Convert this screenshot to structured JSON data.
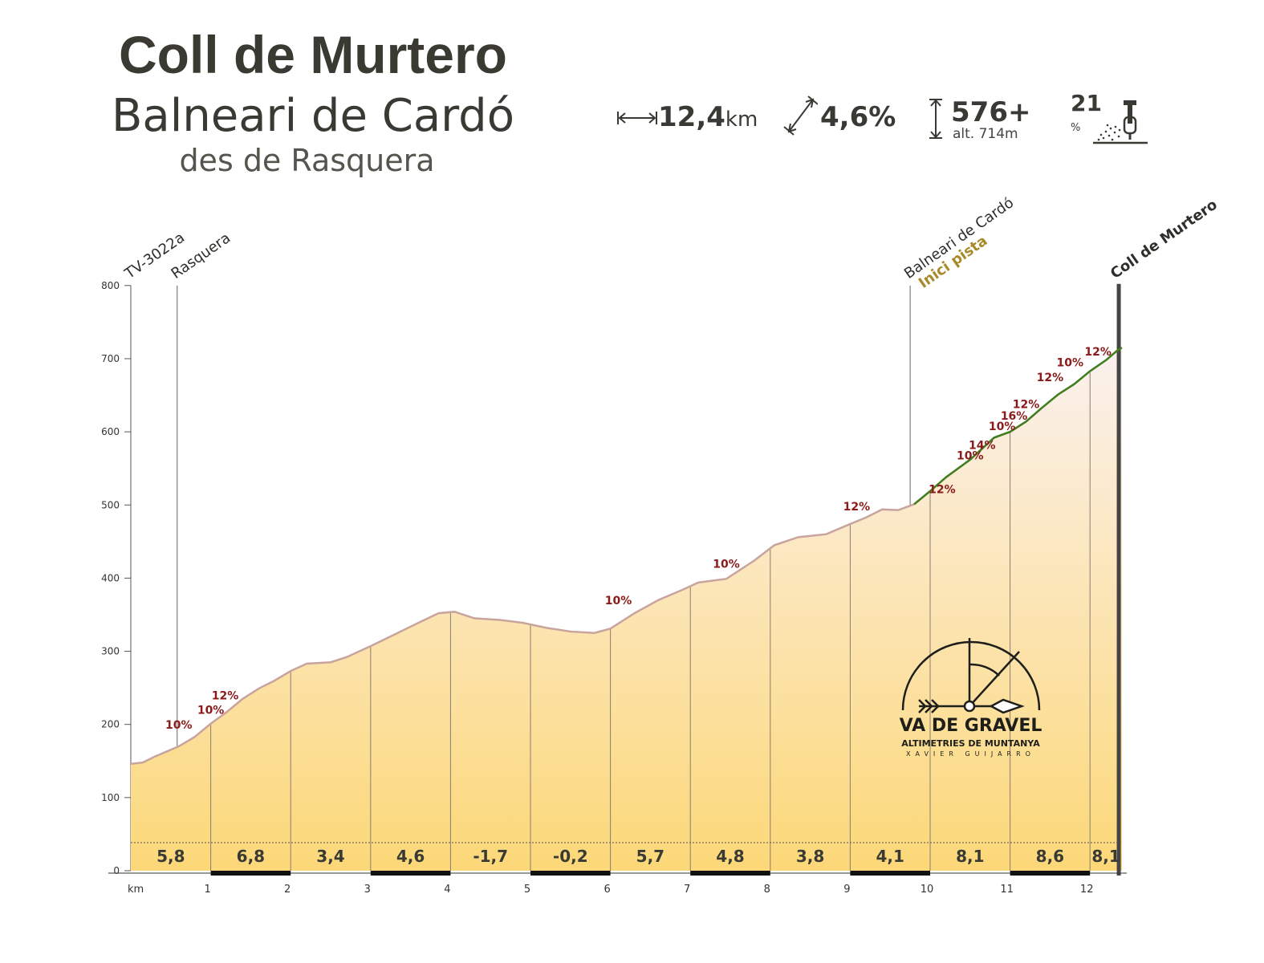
{
  "header": {
    "title": "Coll de Murtero",
    "subtitle": "Balneari de Cardó",
    "subtitle2": "des de Rasquera"
  },
  "stats": {
    "distance_value": "12,4",
    "distance_unit": "km",
    "gradient_value": "4,6%",
    "elevation_gain_value": "576+",
    "max_altitude": "alt. 714m",
    "max_gradient_value": "21",
    "max_gradient_unit": "%"
  },
  "icons": {
    "distance": "distance-arrows-icon",
    "gradient": "gradient-diagonal-icon",
    "elevation": "elevation-arrow-icon",
    "max_gradient": "steep-climb-icon"
  },
  "colors": {
    "fill_top": "#fbf1ee",
    "fill_bottom": "#fcd878",
    "profile_line": "#c8a49e",
    "gravel_line": "#3f7f1f",
    "gradient_label": "#8b1a1a",
    "annotation_gold": "#a88a2a"
  },
  "chart_data": {
    "type": "area",
    "title": "Coll de Murtero",
    "xlabel": "km",
    "ylabel": "",
    "xlim": [
      0,
      12.4
    ],
    "ylim": [
      0,
      800
    ],
    "x_ticks": [
      "1",
      "2",
      "3",
      "4",
      "5",
      "6",
      "7",
      "8",
      "9",
      "10",
      "11",
      "12"
    ],
    "y_ticks": [
      "0",
      "100",
      "200",
      "300",
      "400",
      "500",
      "600",
      "700",
      "800"
    ],
    "profile": [
      {
        "x": 0.0,
        "y": 146
      },
      {
        "x": 0.15,
        "y": 148
      },
      {
        "x": 0.3,
        "y": 156
      },
      {
        "x": 0.45,
        "y": 163
      },
      {
        "x": 0.6,
        "y": 170
      },
      {
        "x": 0.8,
        "y": 183
      },
      {
        "x": 1.0,
        "y": 201
      },
      {
        "x": 1.2,
        "y": 217
      },
      {
        "x": 1.4,
        "y": 235
      },
      {
        "x": 1.6,
        "y": 249
      },
      {
        "x": 1.8,
        "y": 260
      },
      {
        "x": 2.0,
        "y": 273
      },
      {
        "x": 2.2,
        "y": 283
      },
      {
        "x": 2.5,
        "y": 285
      },
      {
        "x": 2.7,
        "y": 292
      },
      {
        "x": 3.0,
        "y": 307
      },
      {
        "x": 3.3,
        "y": 323
      },
      {
        "x": 3.6,
        "y": 339
      },
      {
        "x": 3.85,
        "y": 352
      },
      {
        "x": 4.05,
        "y": 354
      },
      {
        "x": 4.3,
        "y": 345
      },
      {
        "x": 4.6,
        "y": 343
      },
      {
        "x": 4.9,
        "y": 339
      },
      {
        "x": 5.2,
        "y": 332
      },
      {
        "x": 5.5,
        "y": 327
      },
      {
        "x": 5.8,
        "y": 325
      },
      {
        "x": 6.0,
        "y": 331
      },
      {
        "x": 6.3,
        "y": 352
      },
      {
        "x": 6.6,
        "y": 370
      },
      {
        "x": 6.9,
        "y": 384
      },
      {
        "x": 7.1,
        "y": 394
      },
      {
        "x": 7.45,
        "y": 399
      },
      {
        "x": 7.8,
        "y": 424
      },
      {
        "x": 8.05,
        "y": 445
      },
      {
        "x": 8.35,
        "y": 456
      },
      {
        "x": 8.7,
        "y": 460
      },
      {
        "x": 9.0,
        "y": 474
      },
      {
        "x": 9.2,
        "y": 483
      },
      {
        "x": 9.4,
        "y": 494
      },
      {
        "x": 9.6,
        "y": 493
      },
      {
        "x": 9.8,
        "y": 501
      },
      {
        "x": 10.0,
        "y": 519
      },
      {
        "x": 10.2,
        "y": 538
      },
      {
        "x": 10.5,
        "y": 562
      },
      {
        "x": 10.8,
        "y": 592
      },
      {
        "x": 11.0,
        "y": 600
      },
      {
        "x": 11.2,
        "y": 614
      },
      {
        "x": 11.4,
        "y": 633
      },
      {
        "x": 11.6,
        "y": 651
      },
      {
        "x": 11.8,
        "y": 665
      },
      {
        "x": 12.0,
        "y": 683
      },
      {
        "x": 12.2,
        "y": 698
      },
      {
        "x": 12.35,
        "y": 712
      }
    ],
    "gravel_start_km": 9.8,
    "segments": [
      {
        "km_start": 0,
        "km_end": 1,
        "gradient": "5,8"
      },
      {
        "km_start": 1,
        "km_end": 2,
        "gradient": "6,8"
      },
      {
        "km_start": 2,
        "km_end": 3,
        "gradient": "3,4"
      },
      {
        "km_start": 3,
        "km_end": 4,
        "gradient": "4,6"
      },
      {
        "km_start": 4,
        "km_end": 5,
        "gradient": "-1,7"
      },
      {
        "km_start": 5,
        "km_end": 6,
        "gradient": "-0,2"
      },
      {
        "km_start": 6,
        "km_end": 7,
        "gradient": "5,7"
      },
      {
        "km_start": 7,
        "km_end": 8,
        "gradient": "4,8"
      },
      {
        "km_start": 8,
        "km_end": 9,
        "gradient": "3,8"
      },
      {
        "km_start": 9,
        "km_end": 10,
        "gradient": "4,1"
      },
      {
        "km_start": 10,
        "km_end": 11,
        "gradient": "8,1"
      },
      {
        "km_start": 11,
        "km_end": 12,
        "gradient": "8,6"
      },
      {
        "km_start": 12,
        "km_end": 12.4,
        "gradient": "8,1"
      }
    ],
    "gradient_labels": [
      {
        "km": 0.6,
        "alt": 190,
        "text": "10%"
      },
      {
        "km": 1.0,
        "alt": 210,
        "text": "10%"
      },
      {
        "km": 1.18,
        "alt": 230,
        "text": "12%"
      },
      {
        "km": 6.1,
        "alt": 360,
        "text": "10%"
      },
      {
        "km": 7.45,
        "alt": 410,
        "text": "10%"
      },
      {
        "km": 9.08,
        "alt": 488,
        "text": "12%"
      },
      {
        "km": 10.15,
        "alt": 512,
        "text": "12%"
      },
      {
        "km": 10.5,
        "alt": 558,
        "text": "10%"
      },
      {
        "km": 10.65,
        "alt": 572,
        "text": "14%"
      },
      {
        "km": 10.9,
        "alt": 598,
        "text": "10%"
      },
      {
        "km": 11.05,
        "alt": 612,
        "text": "16%"
      },
      {
        "km": 11.2,
        "alt": 628,
        "text": "12%"
      },
      {
        "km": 11.5,
        "alt": 665,
        "text": "12%"
      },
      {
        "km": 11.75,
        "alt": 685,
        "text": "10%"
      },
      {
        "km": 12.1,
        "alt": 700,
        "text": "12%"
      }
    ],
    "waypoints": [
      {
        "km": 0.0,
        "name": "TV-3022a",
        "sub": ""
      },
      {
        "km": 0.58,
        "name": "Rasquera",
        "sub": ""
      },
      {
        "km": 9.75,
        "name": "Balneari de Cardó",
        "sub": "Inici pista"
      },
      {
        "km": 12.33,
        "name": "Coll de Murtero",
        "sub": ""
      }
    ]
  },
  "logo": {
    "line1": "VA DE GRAVEL",
    "line2": "ALTIMETRIES DE MUNTANYA",
    "line3": "XAVIER GUIJARRO"
  }
}
